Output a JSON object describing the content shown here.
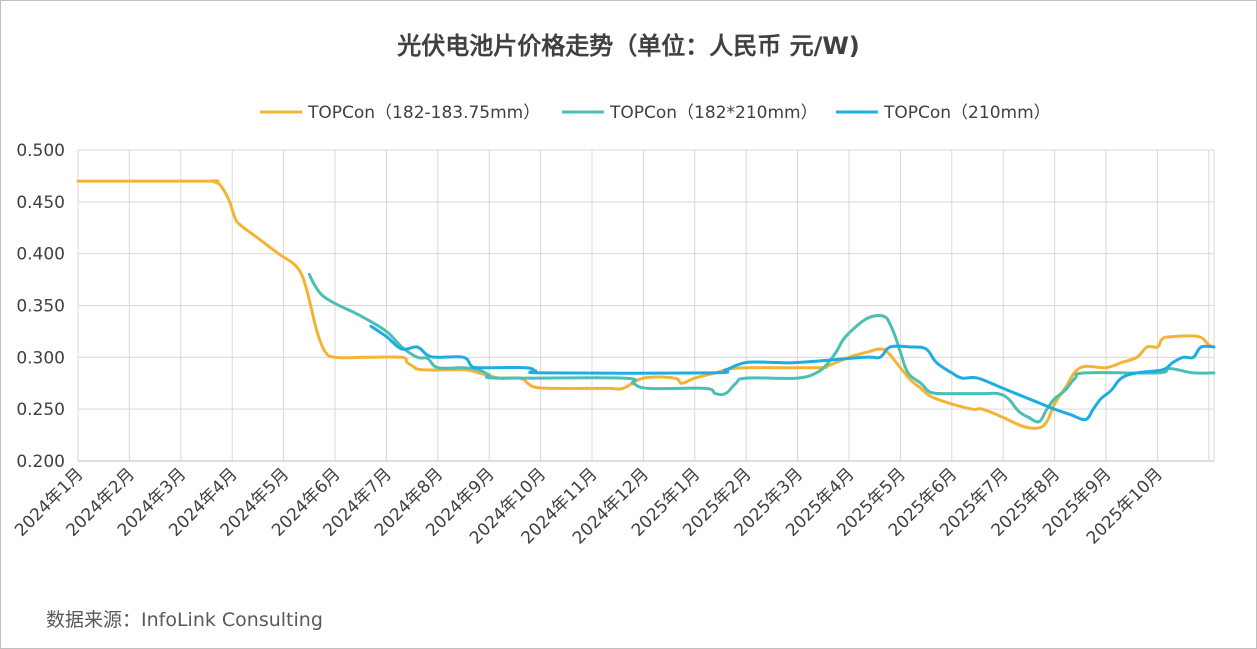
{
  "chart_data": {
    "type": "line",
    "title": "光伏电池片价格走势（单位：人民币 元/W)",
    "source": "数据来源：InfoLink Consulting",
    "ylim": [
      0.2,
      0.5
    ],
    "yticks": [
      "0.500",
      "0.450",
      "0.400",
      "0.350",
      "0.300",
      "0.250",
      "0.200"
    ],
    "ytick_values": [
      0.5,
      0.45,
      0.4,
      0.35,
      0.3,
      0.25,
      0.2
    ],
    "categories": [
      "2024年1月",
      "2024年2月",
      "2024年3月",
      "2024年4月",
      "2024年5月",
      "2024年6月",
      "2024年7月",
      "2024年8月",
      "2024年9月",
      "2024年10月",
      "2024年11月",
      "2024年12月",
      "2025年1月",
      "2025年2月",
      "2025年3月",
      "2025年4月",
      "2025年5月",
      "2025年6月",
      "2025年7月",
      "2025年8月",
      "2025年9月",
      "2025年10月"
    ],
    "xlim": [
      0,
      22.1
    ],
    "grid": true,
    "legend_position": "top",
    "series": [
      {
        "name": "TOPCon（182-183.75mm）",
        "color": "#F5B335",
        "points": [
          [
            0.0,
            0.47
          ],
          [
            2.5,
            0.47
          ],
          [
            2.6,
            0.47
          ],
          [
            2.75,
            0.467
          ],
          [
            2.85,
            0.46
          ],
          [
            2.95,
            0.45
          ],
          [
            3.05,
            0.435
          ],
          [
            3.15,
            0.428
          ],
          [
            3.5,
            0.415
          ],
          [
            3.9,
            0.4
          ],
          [
            4.2,
            0.39
          ],
          [
            4.35,
            0.38
          ],
          [
            4.45,
            0.365
          ],
          [
            4.55,
            0.345
          ],
          [
            4.65,
            0.325
          ],
          [
            4.8,
            0.306
          ],
          [
            5.0,
            0.3
          ],
          [
            5.6,
            0.3
          ],
          [
            6.3,
            0.3
          ],
          [
            6.4,
            0.295
          ],
          [
            6.5,
            0.292
          ],
          [
            6.7,
            0.288
          ],
          [
            7.5,
            0.288
          ],
          [
            7.8,
            0.285
          ],
          [
            8.2,
            0.28
          ],
          [
            8.6,
            0.28
          ],
          [
            8.75,
            0.275
          ],
          [
            8.9,
            0.271
          ],
          [
            9.3,
            0.27
          ],
          [
            10.3,
            0.27
          ],
          [
            10.6,
            0.27
          ],
          [
            11.0,
            0.28
          ],
          [
            11.6,
            0.28
          ],
          [
            11.75,
            0.275
          ],
          [
            12.0,
            0.28
          ],
          [
            12.4,
            0.285
          ],
          [
            12.6,
            0.288
          ],
          [
            13.0,
            0.29
          ],
          [
            14.4,
            0.29
          ],
          [
            14.6,
            0.292
          ],
          [
            15.0,
            0.3
          ],
          [
            15.35,
            0.305
          ],
          [
            15.6,
            0.308
          ],
          [
            15.75,
            0.305
          ],
          [
            16.0,
            0.29
          ],
          [
            16.2,
            0.278
          ],
          [
            16.4,
            0.27
          ],
          [
            16.6,
            0.262
          ],
          [
            17.0,
            0.255
          ],
          [
            17.4,
            0.25
          ],
          [
            17.6,
            0.25
          ],
          [
            18.0,
            0.242
          ],
          [
            18.3,
            0.235
          ],
          [
            18.5,
            0.232
          ],
          [
            18.7,
            0.232
          ],
          [
            18.85,
            0.238
          ],
          [
            19.0,
            0.255
          ],
          [
            19.2,
            0.27
          ],
          [
            19.5,
            0.29
          ],
          [
            20.0,
            0.29
          ],
          [
            20.3,
            0.295
          ],
          [
            20.6,
            0.3
          ],
          [
            20.8,
            0.31
          ],
          [
            21.0,
            0.31
          ],
          [
            21.1,
            0.318
          ],
          [
            21.3,
            0.32
          ],
          [
            21.8,
            0.32
          ],
          [
            22.0,
            0.312
          ],
          [
            22.1,
            0.31
          ]
        ]
      },
      {
        "name": "TOPCon（182*210mm）",
        "color": "#4BBFB3",
        "points": [
          [
            4.5,
            0.38
          ],
          [
            4.6,
            0.37
          ],
          [
            4.75,
            0.36
          ],
          [
            5.0,
            0.352
          ],
          [
            5.5,
            0.34
          ],
          [
            6.0,
            0.325
          ],
          [
            6.3,
            0.31
          ],
          [
            6.6,
            0.3
          ],
          [
            6.8,
            0.299
          ],
          [
            7.0,
            0.29
          ],
          [
            7.5,
            0.29
          ],
          [
            7.8,
            0.288
          ],
          [
            8.0,
            0.283
          ],
          [
            8.2,
            0.28
          ],
          [
            10.6,
            0.28
          ],
          [
            10.8,
            0.275
          ],
          [
            11.1,
            0.27
          ],
          [
            12.2,
            0.27
          ],
          [
            12.4,
            0.265
          ],
          [
            12.6,
            0.265
          ],
          [
            12.8,
            0.275
          ],
          [
            13.0,
            0.28
          ],
          [
            14.0,
            0.28
          ],
          [
            14.4,
            0.286
          ],
          [
            14.6,
            0.295
          ],
          [
            14.75,
            0.305
          ],
          [
            14.9,
            0.318
          ],
          [
            15.1,
            0.328
          ],
          [
            15.3,
            0.336
          ],
          [
            15.5,
            0.34
          ],
          [
            15.7,
            0.339
          ],
          [
            15.8,
            0.332
          ],
          [
            15.9,
            0.32
          ],
          [
            16.0,
            0.305
          ],
          [
            16.1,
            0.29
          ],
          [
            16.2,
            0.282
          ],
          [
            16.4,
            0.275
          ],
          [
            16.6,
            0.266
          ],
          [
            17.0,
            0.265
          ],
          [
            17.6,
            0.265
          ],
          [
            17.9,
            0.265
          ],
          [
            18.1,
            0.26
          ],
          [
            18.3,
            0.248
          ],
          [
            18.5,
            0.242
          ],
          [
            18.7,
            0.238
          ],
          [
            18.85,
            0.25
          ],
          [
            19.0,
            0.26
          ],
          [
            19.2,
            0.268
          ],
          [
            19.4,
            0.28
          ],
          [
            19.6,
            0.285
          ],
          [
            21.0,
            0.285
          ],
          [
            21.2,
            0.289
          ],
          [
            21.4,
            0.288
          ],
          [
            21.7,
            0.285
          ],
          [
            22.1,
            0.285
          ]
        ]
      },
      {
        "name": "TOPCon（210mm）",
        "color": "#1DADE3",
        "points": [
          [
            5.7,
            0.33
          ],
          [
            6.0,
            0.32
          ],
          [
            6.3,
            0.308
          ],
          [
            6.6,
            0.31
          ],
          [
            6.8,
            0.302
          ],
          [
            7.0,
            0.3
          ],
          [
            7.5,
            0.3
          ],
          [
            7.65,
            0.292
          ],
          [
            7.8,
            0.29
          ],
          [
            8.7,
            0.29
          ],
          [
            8.9,
            0.287
          ],
          [
            9.1,
            0.285
          ],
          [
            12.3,
            0.285
          ],
          [
            12.6,
            0.288
          ],
          [
            13.0,
            0.295
          ],
          [
            13.6,
            0.295
          ],
          [
            14.0,
            0.295
          ],
          [
            15.3,
            0.3
          ],
          [
            15.6,
            0.3
          ],
          [
            15.8,
            0.31
          ],
          [
            16.2,
            0.31
          ],
          [
            16.5,
            0.308
          ],
          [
            16.7,
            0.295
          ],
          [
            17.0,
            0.285
          ],
          [
            17.2,
            0.28
          ],
          [
            17.5,
            0.28
          ],
          [
            18.0,
            0.27
          ],
          [
            18.5,
            0.26
          ],
          [
            19.0,
            0.25
          ],
          [
            19.3,
            0.245
          ],
          [
            19.6,
            0.24
          ],
          [
            19.75,
            0.25
          ],
          [
            19.9,
            0.26
          ],
          [
            20.1,
            0.268
          ],
          [
            20.3,
            0.28
          ],
          [
            20.6,
            0.285
          ],
          [
            21.1,
            0.288
          ],
          [
            21.3,
            0.295
          ],
          [
            21.5,
            0.3
          ],
          [
            21.7,
            0.3
          ],
          [
            21.85,
            0.31
          ],
          [
            22.1,
            0.31
          ]
        ]
      }
    ]
  }
}
